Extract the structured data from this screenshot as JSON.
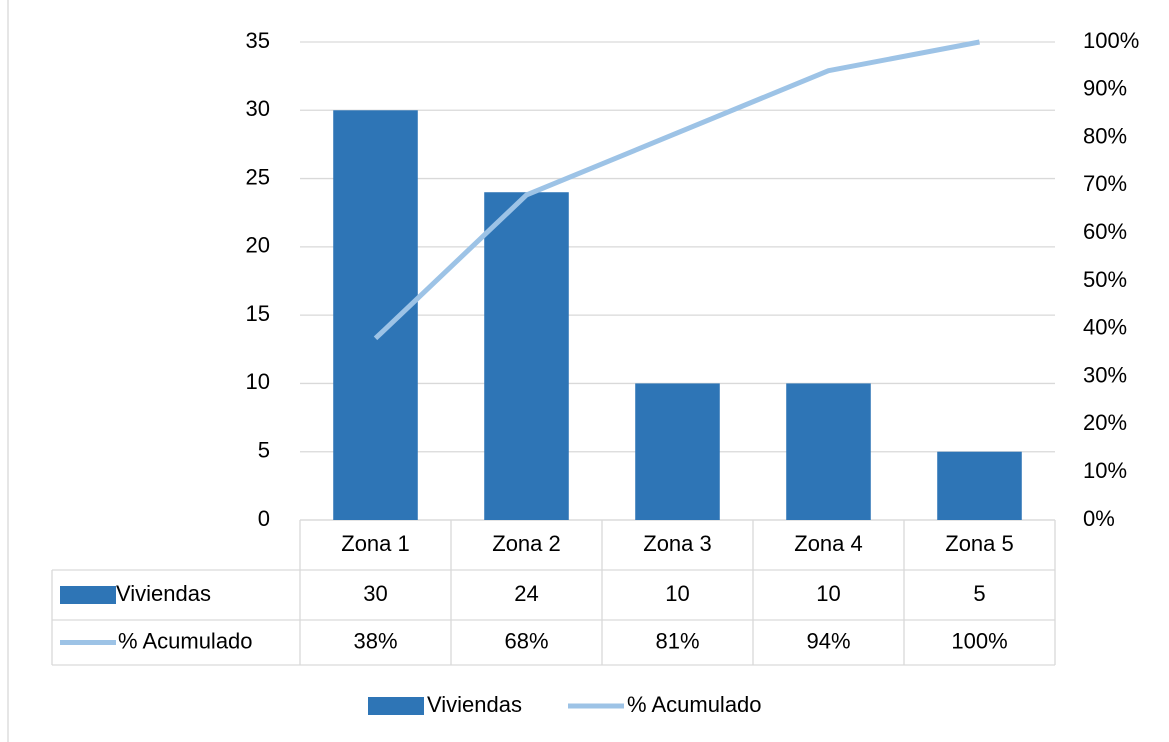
{
  "chart_data": {
    "type": "bar-line",
    "categories": [
      "Zona 1",
      "Zona 2",
      "Zona 3",
      "Zona 4",
      "Zona 5"
    ],
    "series": [
      {
        "name": "Viviendas",
        "type": "bar",
        "color": "#2e75b6",
        "values": [
          30,
          24,
          10,
          10,
          5
        ]
      },
      {
        "name": "% Acumulado",
        "type": "line",
        "color": "#9dc3e6",
        "axis": "y2",
        "values": [
          38,
          68,
          81,
          94,
          100
        ],
        "value_labels": [
          "38%",
          "68%",
          "81%",
          "94%",
          "100%"
        ]
      }
    ],
    "ylim": [
      0,
      35
    ],
    "yticks": [
      0,
      5,
      10,
      15,
      20,
      25,
      30,
      35
    ],
    "y2lim": [
      0,
      100
    ],
    "y2ticks": [
      {
        "value": 0,
        "label": "0%"
      },
      {
        "value": 10,
        "label": "10%"
      },
      {
        "value": 20,
        "label": "20%"
      },
      {
        "value": 30,
        "label": "30%"
      },
      {
        "value": 40,
        "label": "40%"
      },
      {
        "value": 50,
        "label": "50%"
      },
      {
        "value": 60,
        "label": "60%"
      },
      {
        "value": 70,
        "label": "70%"
      },
      {
        "value": 80,
        "label": "80%"
      },
      {
        "value": 90,
        "label": "90%"
      },
      {
        "value": 100,
        "label": "100%"
      }
    ],
    "grid": true,
    "data_table": true,
    "legend": "bottom"
  }
}
